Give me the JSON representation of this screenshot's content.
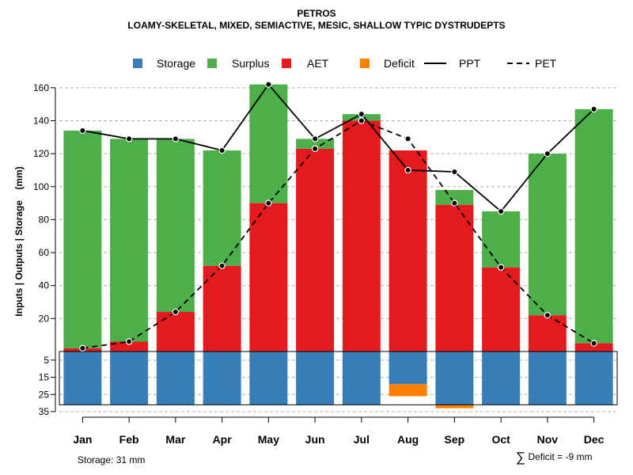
{
  "chart_data": {
    "type": "bar",
    "title": "PETROS",
    "subtitle": "LOAMY-SKELETAL, MIXED, SEMIACTIVE, MESIC, SHALLOW TYPIC DYSTRUDEPTS",
    "ylabel": "Inputs | Outputs | Storage    (mm)",
    "categories": [
      "Jan",
      "Feb",
      "Mar",
      "Apr",
      "May",
      "Jun",
      "Jul",
      "Aug",
      "Sep",
      "Oct",
      "Nov",
      "Dec"
    ],
    "upper_ylim": [
      0,
      170
    ],
    "upper_ticks": [
      20,
      40,
      60,
      80,
      100,
      120,
      140,
      160
    ],
    "lower_ylim": [
      0,
      35
    ],
    "lower_ticks": [
      5,
      15,
      25,
      35
    ],
    "legend": [
      {
        "name": "Storage",
        "kind": "box",
        "color": "#377eb8"
      },
      {
        "name": "Surplus",
        "kind": "box",
        "color": "#4daf4a"
      },
      {
        "name": "AET",
        "kind": "box",
        "color": "#e41a1c"
      },
      {
        "name": "Deficit",
        "kind": "box",
        "color": "#ff7f00"
      },
      {
        "name": "PPT",
        "kind": "solid",
        "color": "#000000"
      },
      {
        "name": "PET",
        "kind": "dashed",
        "color": "#000000"
      }
    ],
    "series": [
      {
        "name": "AET",
        "values": [
          2,
          6,
          24,
          52,
          90,
          123,
          140,
          122,
          89,
          51,
          22,
          5
        ]
      },
      {
        "name": "Surplus",
        "values": [
          132,
          123,
          105,
          70,
          72,
          6,
          4,
          0,
          9,
          34,
          98,
          142
        ]
      },
      {
        "name": "Storage",
        "values": [
          31,
          31,
          31,
          31,
          31,
          31,
          31,
          19,
          31,
          31,
          31,
          31
        ]
      },
      {
        "name": "Deficit",
        "values": [
          0,
          0,
          0,
          0,
          0,
          0,
          0,
          7,
          2,
          0,
          0,
          0
        ]
      },
      {
        "name": "PPT",
        "values": [
          134,
          129,
          129,
          122,
          162,
          129,
          144,
          110,
          109,
          85,
          120,
          147
        ]
      },
      {
        "name": "PET",
        "values": [
          2,
          6,
          24,
          52,
          90,
          123,
          140,
          129,
          90,
          51,
          22,
          5
        ]
      }
    ]
  },
  "footer": {
    "storage_label": "Storage: 31 mm",
    "deficit_symbol": "∑",
    "deficit_label": "Deficit = -9 mm"
  }
}
